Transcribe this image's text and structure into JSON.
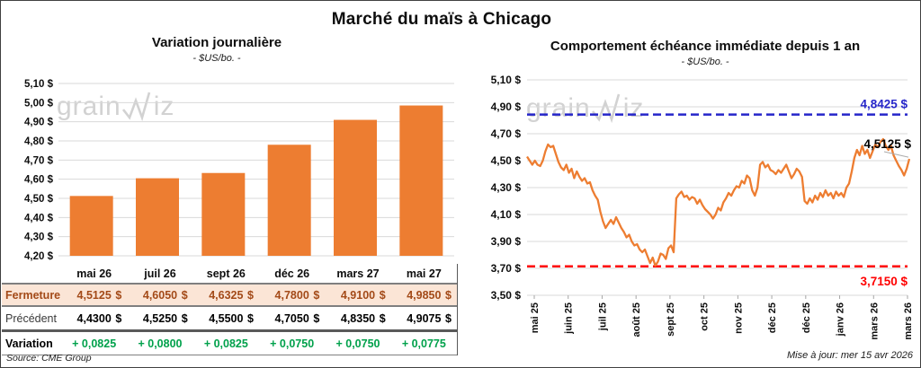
{
  "frame": {
    "main_title": "Marché du maïs à Chicago",
    "source": "Source: CME Group",
    "updated": "Mise à jour: mer 15 avr 2026",
    "watermark_prefix": "grain",
    "watermark_suffix": "iz"
  },
  "left": {
    "title": "Variation journalière",
    "subtitle": "- $US/bo. -",
    "table": {
      "columns": [
        "mai 26",
        "juil 26",
        "sept 26",
        "déc 26",
        "mars 27",
        "mai 27"
      ],
      "rows": [
        {
          "key": "fermeture",
          "label": "Fermeture",
          "currency": "$",
          "values": [
            "4,5125",
            "4,6050",
            "4,6325",
            "4,7800",
            "4,9100",
            "4,9850"
          ]
        },
        {
          "key": "precedent",
          "label": "Précédent",
          "currency": "$",
          "values": [
            "4,4300",
            "4,5250",
            "4,5500",
            "4,7050",
            "4,8350",
            "4,9075"
          ]
        },
        {
          "key": "variation",
          "label": "Variation",
          "currency": "",
          "values": [
            "+ 0,0825",
            "+ 0,0800",
            "+ 0,0825",
            "+ 0,0750",
            "+ 0,0750",
            "+ 0,0775"
          ]
        }
      ]
    }
  },
  "right": {
    "title": "Comportement échéance immédiate depuis 1 an",
    "subtitle": "- $US/bo. -"
  },
  "colors": {
    "orange": "#ED7D31",
    "grid": "#D9D9D9",
    "blue": "#2626C9",
    "red": "#FF0000",
    "green": "#00A14B",
    "fermeture_text": "#A34A18",
    "fermeture_bg": "#FBE5D6",
    "leader_gray": "#ABABAB",
    "tick_gray": "#A6A6A6"
  },
  "chart_data": [
    {
      "type": "bar",
      "title": "Variation journalière",
      "subtitle": "- $US/bo. -",
      "categories": [
        "mai 26",
        "juil 26",
        "sept 26",
        "déc 26",
        "mars 27",
        "mai 27"
      ],
      "values": [
        4.5125,
        4.605,
        4.6325,
        4.78,
        4.91,
        4.985
      ],
      "ylim": [
        4.2,
        5.1
      ],
      "y_tick_labels": [
        "5,10 $",
        "5,00 $",
        "4,90 $",
        "4,80 $",
        "4,70 $",
        "4,60 $",
        "4,50 $",
        "4,40 $",
        "4,30 $",
        "4,20 $"
      ],
      "grid": true,
      "bar_color": "#ED7D31"
    },
    {
      "type": "line",
      "title": "Comportement échéance immédiate depuis 1 an",
      "subtitle": "- $US/bo. -",
      "x_labels": [
        "mai 25",
        "juin 25",
        "juil 25",
        "août 25",
        "sept 25",
        "oct 25",
        "nov 25",
        "déc 25",
        "déc 25",
        "janv 26",
        "mars 26",
        "mars 26"
      ],
      "ylim": [
        3.5,
        5.1
      ],
      "y_tick_labels": [
        "5,10 $",
        "4,90 $",
        "4,70 $",
        "4,50 $",
        "4,30 $",
        "4,10 $",
        "3,90 $",
        "3,70 $",
        "3,50 $"
      ],
      "grid": true,
      "line_color": "#ED7D31",
      "resistance": {
        "value": 4.8425,
        "label": "4,8425 $",
        "color": "#2626C9"
      },
      "support": {
        "value": 3.715,
        "label": "3,7150 $",
        "color": "#FF0000"
      },
      "last": {
        "value": 4.5125,
        "label": "4,5125 $"
      },
      "values": [
        4.53,
        4.5,
        4.47,
        4.5,
        4.47,
        4.46,
        4.5,
        4.57,
        4.62,
        4.6,
        4.61,
        4.55,
        4.49,
        4.45,
        4.43,
        4.47,
        4.41,
        4.44,
        4.37,
        4.42,
        4.38,
        4.35,
        4.37,
        4.33,
        4.34,
        4.28,
        4.24,
        4.21,
        4.12,
        4.05,
        4.0,
        4.03,
        4.06,
        4.03,
        4.08,
        4.04,
        4.0,
        3.97,
        3.93,
        3.95,
        3.9,
        3.87,
        3.88,
        3.84,
        3.82,
        3.84,
        3.79,
        3.74,
        3.78,
        3.72,
        3.75,
        3.81,
        3.8,
        3.77,
        3.85,
        3.87,
        3.82,
        4.22,
        4.25,
        4.27,
        4.23,
        4.24,
        4.21,
        4.23,
        4.22,
        4.18,
        4.21,
        4.17,
        4.14,
        4.12,
        4.1,
        4.07,
        4.1,
        4.15,
        4.13,
        4.19,
        4.22,
        4.26,
        4.24,
        4.28,
        4.31,
        4.3,
        4.35,
        4.33,
        4.39,
        4.37,
        4.28,
        4.24,
        4.3,
        4.47,
        4.49,
        4.45,
        4.47,
        4.43,
        4.42,
        4.4,
        4.43,
        4.41,
        4.44,
        4.47,
        4.42,
        4.37,
        4.4,
        4.44,
        4.42,
        4.38,
        4.2,
        4.18,
        4.22,
        4.19,
        4.24,
        4.21,
        4.26,
        4.23,
        4.28,
        4.24,
        4.26,
        4.22,
        4.27,
        4.24,
        4.26,
        4.23,
        4.3,
        4.33,
        4.42,
        4.52,
        4.58,
        4.54,
        4.61,
        4.55,
        4.58,
        4.52,
        4.57,
        4.62,
        4.6,
        4.64,
        4.66,
        4.61,
        4.58,
        4.61,
        4.54,
        4.5,
        4.46,
        4.43,
        4.39,
        4.44,
        4.5125
      ]
    }
  ]
}
